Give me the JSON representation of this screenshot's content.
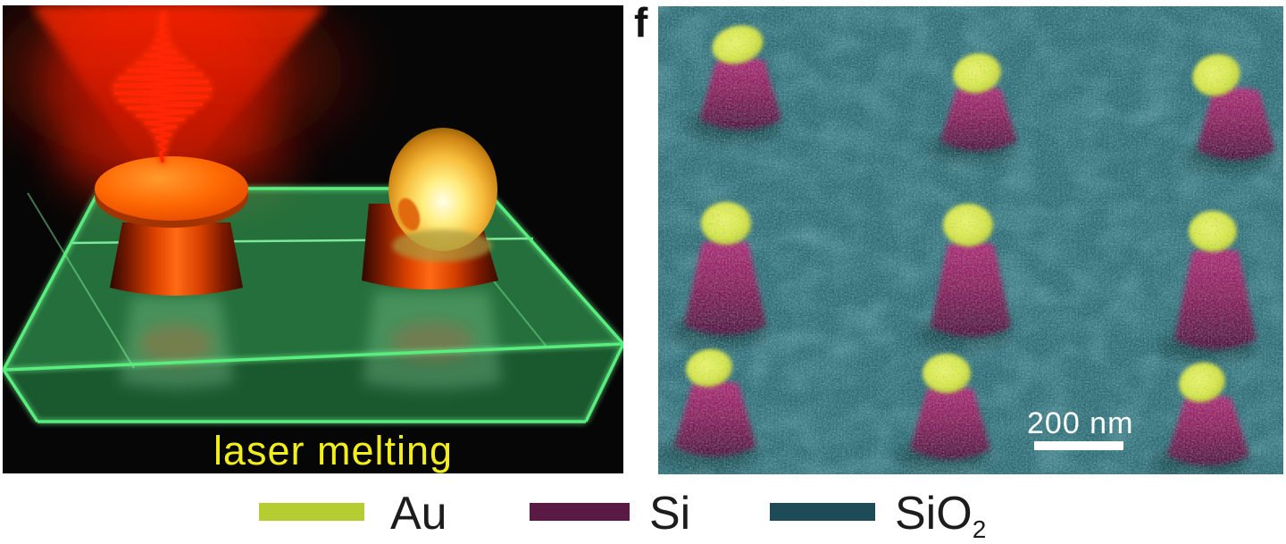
{
  "figure": {
    "left_panel": {
      "caption": "laser melting",
      "description": "schematic of femtosecond laser pulse melting a gold nanodisc on a silicon pillar into a sphere"
    },
    "right_panel": {
      "label": "f",
      "scale_bar_text": "200 nm",
      "description": "false-colored SEM image, 3x3 array of gold spheres on silicon cones on silica"
    },
    "legend": {
      "items": [
        {
          "name": "Au",
          "label": "Au",
          "subscript": "",
          "color": "#b5cd30"
        },
        {
          "name": "Si",
          "label": "Si",
          "subscript": "",
          "color": "#5a1a45"
        },
        {
          "name": "SiO2",
          "label": "SiO",
          "subscript": "2",
          "color": "#1d4b57"
        }
      ]
    },
    "colors": {
      "sem_background": "#2d6a73",
      "sem_gold_particle": "#dce73f",
      "sem_silicon_cone": "#8e1b59",
      "laser_red": "#ff2505",
      "glass_edge_green": "#58ee7e",
      "pillar_orange": "#ff6a14",
      "caption_yellow": "#f2ee1b",
      "scale_bar_white": "#ffffff"
    }
  }
}
